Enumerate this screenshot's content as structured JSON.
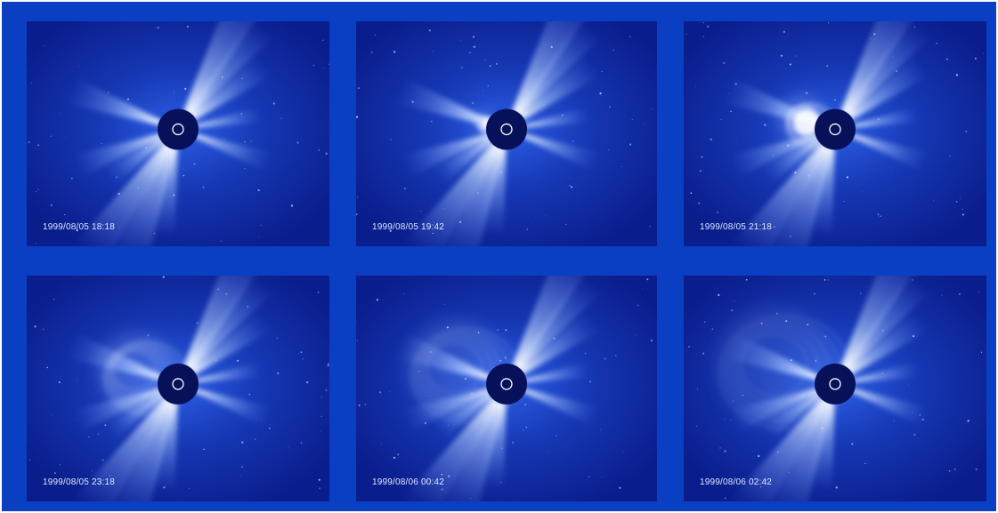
{
  "panels": [
    {
      "timestamp": "1999/08/05 18:18",
      "cme_stage": 0
    },
    {
      "timestamp": "1999/08/05 19:42",
      "cme_stage": 1
    },
    {
      "timestamp": "1999/08/05 21:18",
      "cme_stage": 2
    },
    {
      "timestamp": "1999/08/05 23:18",
      "cme_stage": 3
    },
    {
      "timestamp": "1999/08/06 00:42",
      "cme_stage": 4
    },
    {
      "timestamp": "1999/08/06 02:42",
      "cme_stage": 5
    }
  ],
  "colors": {
    "border": "#0a3fc4",
    "sky": "#0a1d8c",
    "corona": "#ffffff",
    "occulter": "#06115a"
  }
}
